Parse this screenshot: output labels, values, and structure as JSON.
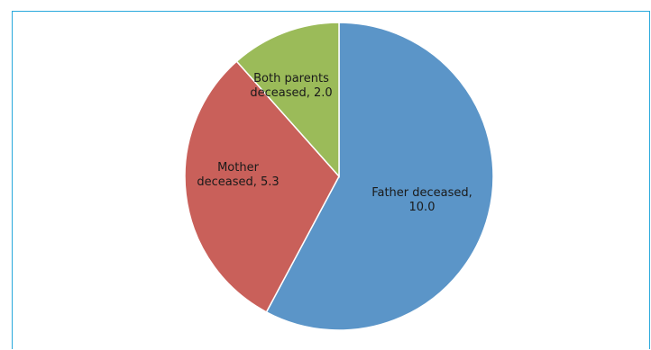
{
  "chart_data": {
    "type": "pie",
    "title": "",
    "slices": [
      {
        "label_lines": [
          "Father deceased,",
          "10.0"
        ],
        "category": "Father deceased",
        "value": 10.0,
        "color": "#5b95c8"
      },
      {
        "label_lines": [
          "Mother",
          "deceased, 5.3"
        ],
        "category": "Mother deceased",
        "value": 5.3,
        "color": "#c9605a"
      },
      {
        "label_lines": [
          "Both parents",
          "deceased, 2.0"
        ],
        "category": "Both parents deceased",
        "value": 2.0,
        "color": "#9bbb59"
      }
    ],
    "legend": "none"
  },
  "colors": {
    "frame_border": "#29a9dc",
    "slice_border": "#ffffff",
    "label_text": "#1a1a1a"
  }
}
